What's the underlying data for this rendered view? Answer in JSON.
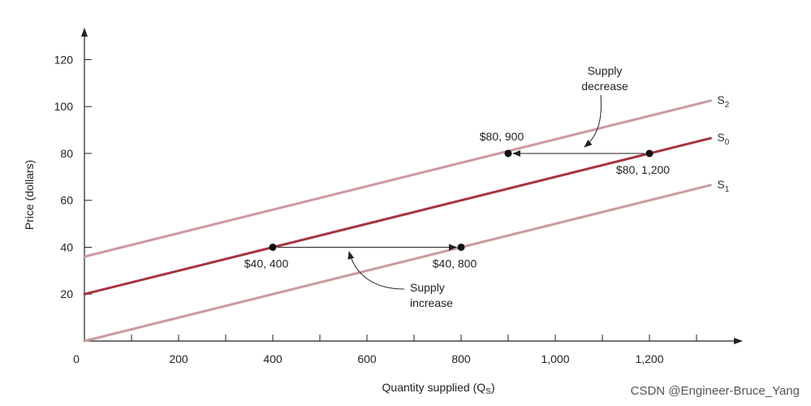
{
  "chart_data": {
    "type": "line",
    "xlabel": "Quantity supplied (Q",
    "xlabel_sub": "S",
    "ylabel": "Price (dollars)",
    "xlim": [
      0,
      1350
    ],
    "ylim": [
      0,
      130
    ],
    "x_ticks": [
      0,
      100,
      200,
      300,
      400,
      500,
      600,
      700,
      800,
      900,
      1000,
      1100,
      1200,
      1300
    ],
    "x_tick_labels": [
      {
        "value": 0,
        "label": "0"
      },
      {
        "value": 200,
        "label": "200"
      },
      {
        "value": 400,
        "label": "400"
      },
      {
        "value": 600,
        "label": "600"
      },
      {
        "value": 800,
        "label": "800"
      },
      {
        "value": 1000,
        "label": "1,000"
      },
      {
        "value": 1200,
        "label": "1,200"
      }
    ],
    "y_ticks": [
      {
        "value": 20,
        "label": "20"
      },
      {
        "value": 40,
        "label": "40"
      },
      {
        "value": 60,
        "label": "60"
      },
      {
        "value": 80,
        "label": "80"
      },
      {
        "value": 100,
        "label": "100"
      },
      {
        "value": 120,
        "label": "120"
      }
    ],
    "grid": false,
    "series": [
      {
        "name": "S",
        "sub": "2",
        "x": [
          0,
          1330
        ],
        "y": [
          36,
          102.5
        ],
        "color": "#cc9a9e"
      },
      {
        "name": "S",
        "sub": "0",
        "x": [
          0,
          1330
        ],
        "y": [
          20,
          86.5
        ],
        "color": "#a6343f"
      },
      {
        "name": "S",
        "sub": "1",
        "x": [
          0,
          1330
        ],
        "y": [
          0,
          66.5
        ],
        "color": "#cc9a9e"
      }
    ],
    "points": [
      {
        "x": 900,
        "y": 80,
        "label": "$80, 900",
        "label_pos": "above"
      },
      {
        "x": 1200,
        "y": 80,
        "label": "$80, 1,200",
        "label_pos": "below"
      },
      {
        "x": 400,
        "y": 40,
        "label": "$40, 400",
        "label_pos": "below"
      },
      {
        "x": 800,
        "y": 40,
        "label": "$40, 800",
        "label_pos": "below"
      }
    ],
    "shift_arrows": [
      {
        "from": [
          1200,
          80
        ],
        "to": [
          900,
          80
        ]
      },
      {
        "from": [
          400,
          40
        ],
        "to": [
          800,
          40
        ]
      }
    ],
    "annotations": [
      {
        "lines": [
          "Supply",
          "decrease"
        ],
        "name": "supply-decrease-annotation"
      },
      {
        "lines": [
          "Supply",
          "increase"
        ],
        "name": "supply-increase-annotation"
      }
    ]
  },
  "watermark": "CSDN @Engineer-Bruce_Yang"
}
